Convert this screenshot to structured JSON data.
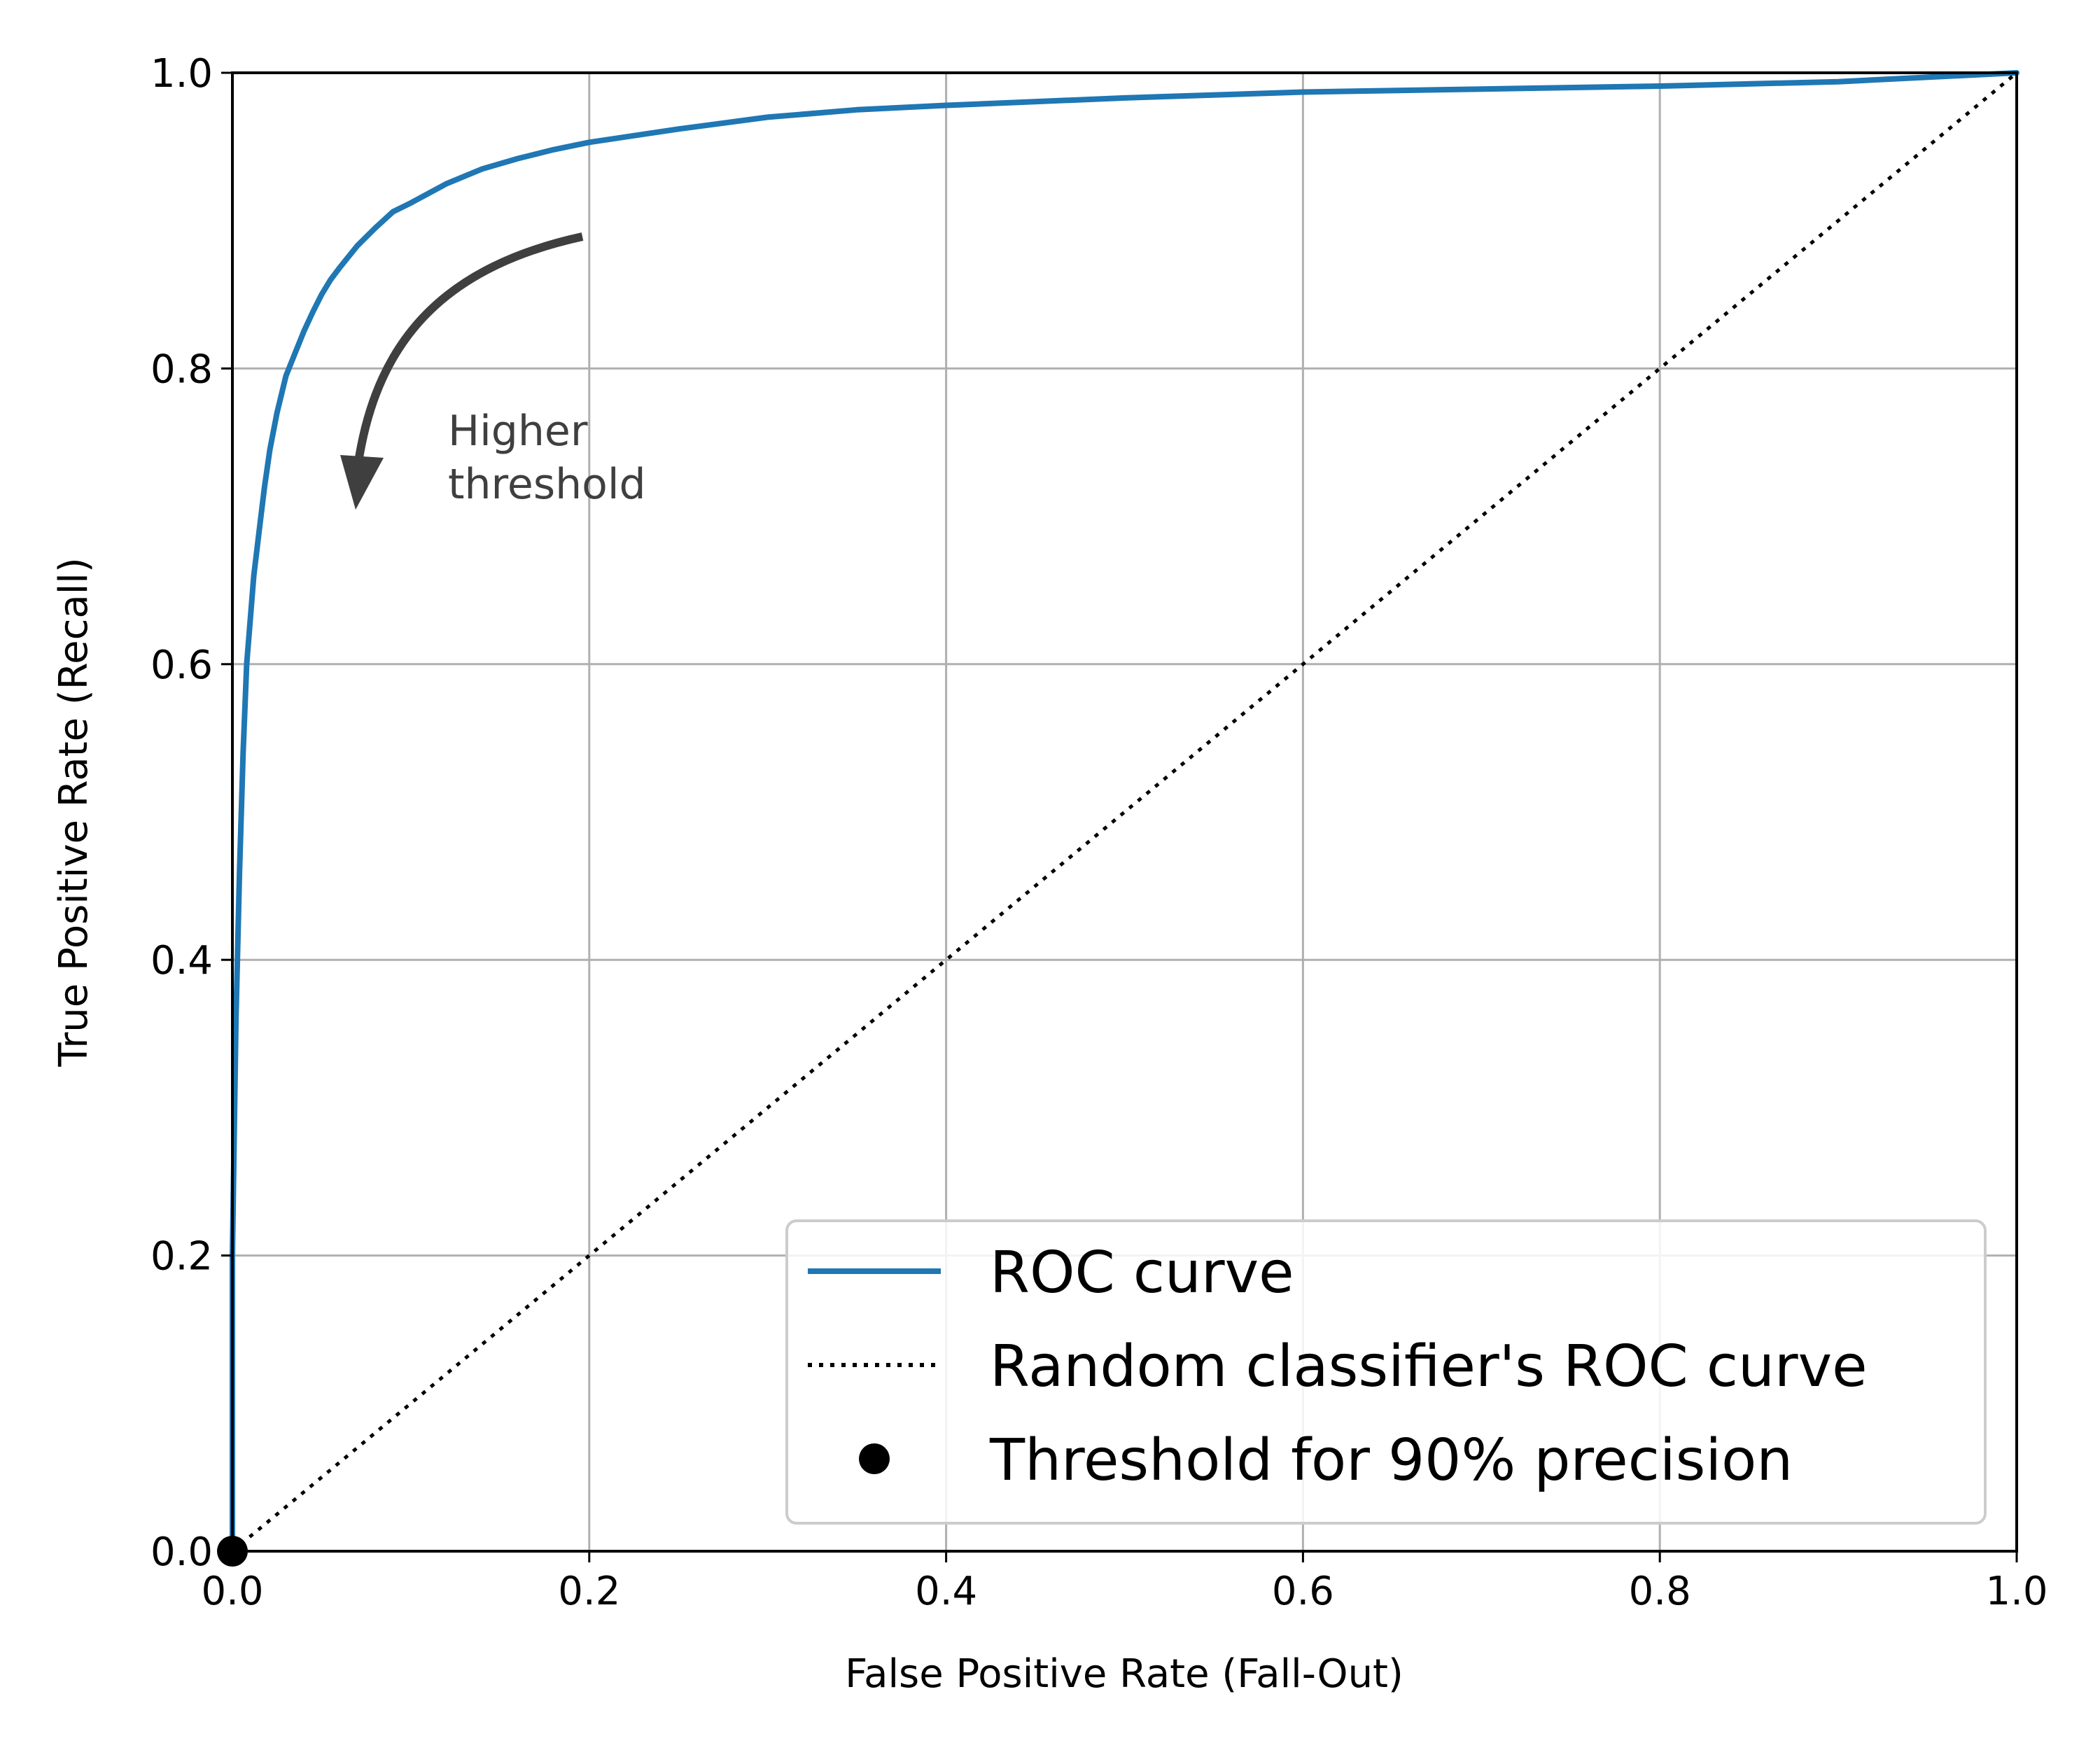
{
  "chart_data": {
    "type": "line",
    "xlabel": "False Positive Rate (Fall-Out)",
    "ylabel": "True Positive Rate (Recall)",
    "xlim": [
      0.0,
      1.0
    ],
    "ylim": [
      0.0,
      1.0
    ],
    "x_ticks": [
      "0.0",
      "0.2",
      "0.4",
      "0.6",
      "0.8",
      "1.0"
    ],
    "y_ticks": [
      "0.0",
      "0.2",
      "0.4",
      "0.6",
      "0.8",
      "1.0"
    ],
    "grid": true,
    "legend_position": "lower-right",
    "series": [
      {
        "name": "ROC curve",
        "color": "#1f77b4",
        "style": "solid",
        "x": [
          0.0,
          0.0,
          0.002,
          0.004,
          0.006,
          0.008,
          0.01,
          0.012,
          0.015,
          0.018,
          0.021,
          0.025,
          0.03,
          0.035,
          0.04,
          0.045,
          0.05,
          0.055,
          0.06,
          0.07,
          0.08,
          0.09,
          0.1,
          0.12,
          0.14,
          0.16,
          0.18,
          0.2,
          0.25,
          0.3,
          0.35,
          0.4,
          0.5,
          0.6,
          0.7,
          0.8,
          0.9,
          1.0
        ],
        "y": [
          0.0,
          0.2,
          0.36,
          0.46,
          0.54,
          0.6,
          0.63,
          0.66,
          0.69,
          0.72,
          0.745,
          0.77,
          0.795,
          0.81,
          0.825,
          0.838,
          0.85,
          0.86,
          0.868,
          0.883,
          0.895,
          0.906,
          0.912,
          0.925,
          0.935,
          0.942,
          0.948,
          0.953,
          0.962,
          0.97,
          0.975,
          0.978,
          0.983,
          0.987,
          0.989,
          0.991,
          0.994,
          1.0
        ]
      },
      {
        "name": "Random classifier's ROC curve",
        "color": "#000000",
        "style": "dotted",
        "x": [
          0.0,
          1.0
        ],
        "y": [
          0.0,
          1.0
        ]
      },
      {
        "name": "Threshold for 90% precision",
        "color": "#000000",
        "style": "marker",
        "x": [
          0.0
        ],
        "y": [
          0.0
        ]
      }
    ],
    "annotations": [
      {
        "text_lines": [
          "Higher",
          "threshold"
        ],
        "color": "#3f3f3f"
      }
    ]
  }
}
